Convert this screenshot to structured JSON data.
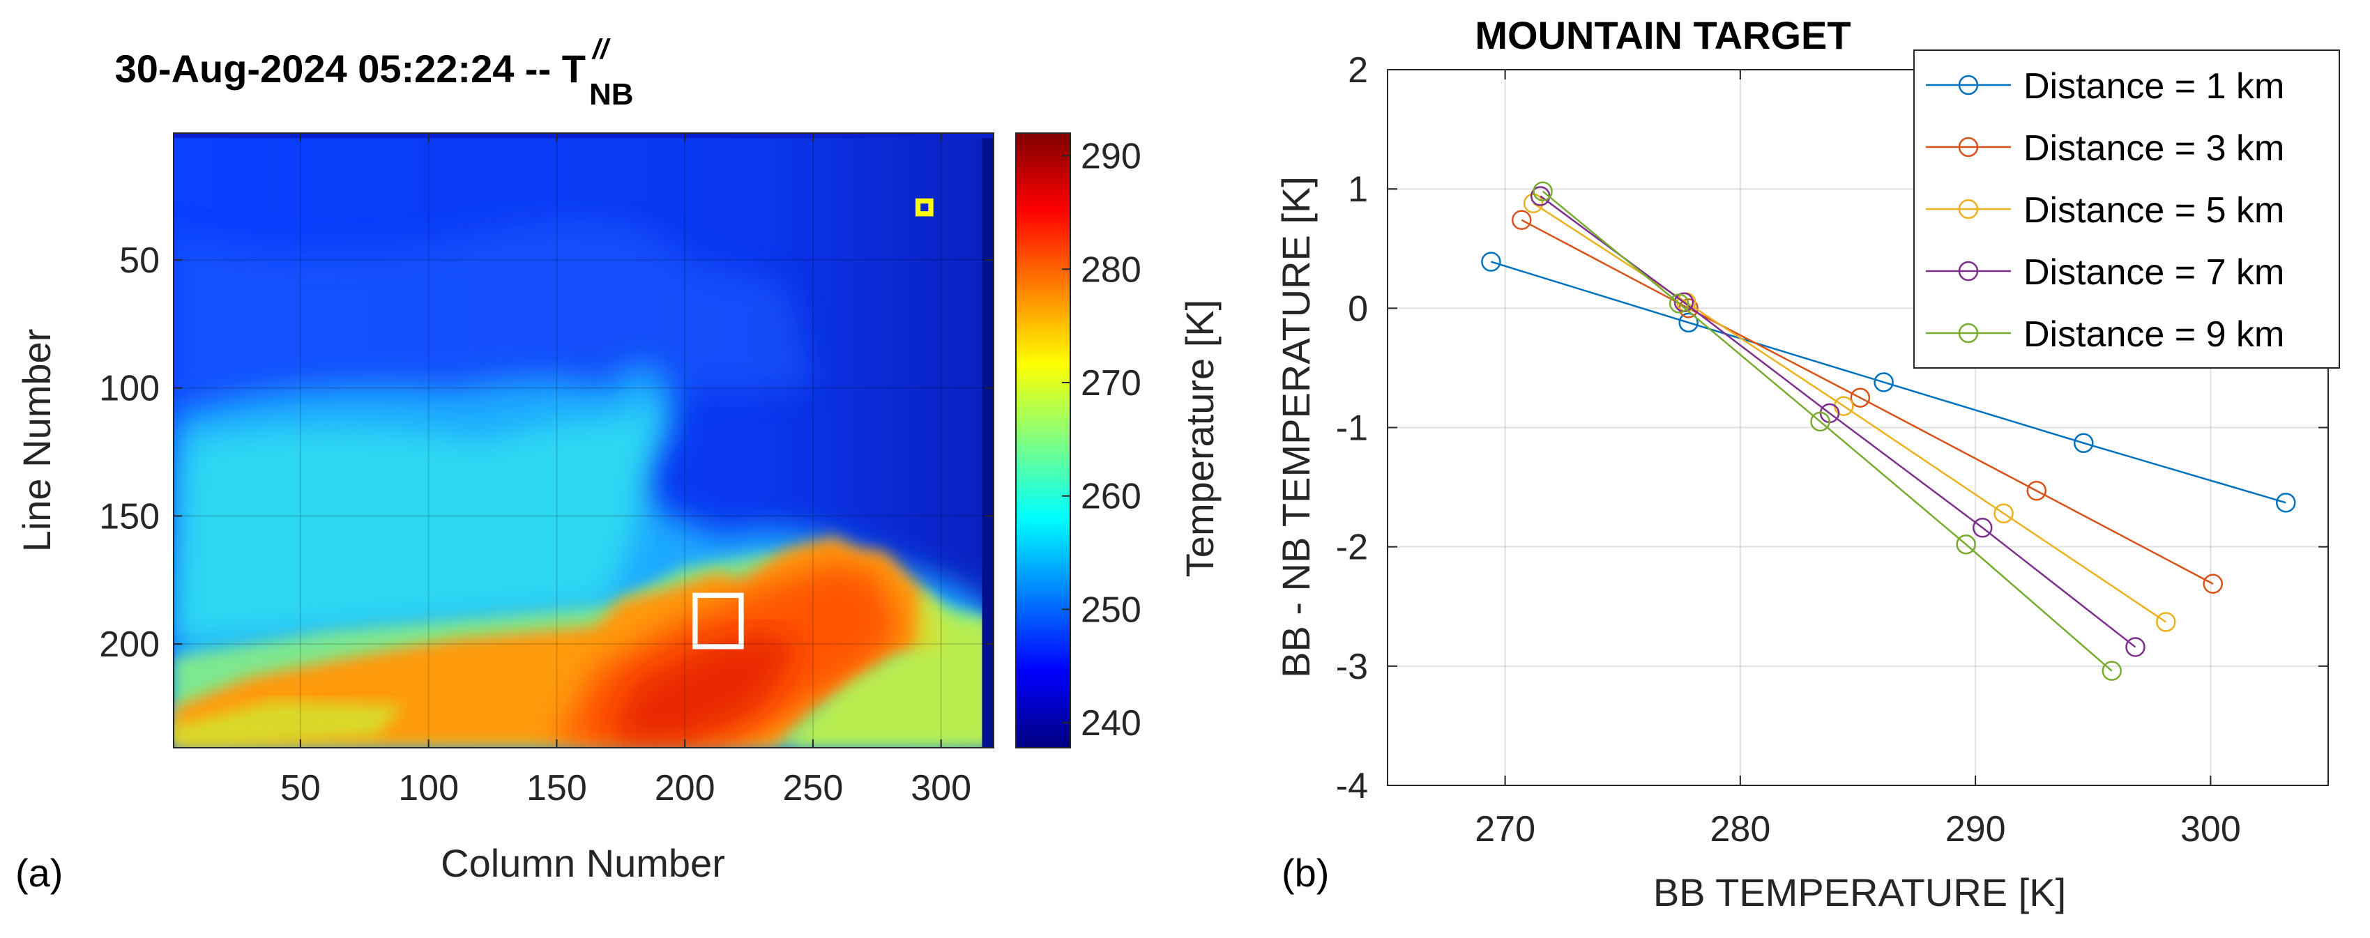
{
  "panel_labels": {
    "a": "(a)",
    "b": "(b)"
  },
  "chart_data": [
    {
      "type": "heatmap",
      "title": "30-Aug-2024 05:22:24 -- T",
      "title_superscript": "//",
      "title_subscript": "NB",
      "xlabel": "Column Number",
      "ylabel": "Line Number",
      "xlim": [
        0.5,
        320.5
      ],
      "ylim": [
        0.5,
        240.5
      ],
      "xticks": [
        50,
        100,
        150,
        200,
        250,
        300
      ],
      "yticks": [
        50,
        100,
        150,
        200
      ],
      "y_reversed": true,
      "colormap": "jet",
      "colorbar": {
        "label": "Temperature [K]",
        "range": [
          237.8,
          292
        ],
        "ticks": [
          240,
          250,
          260,
          270,
          280,
          290
        ]
      },
      "annotations": [
        {
          "shape": "square",
          "color": "#ffff00",
          "col": [
            290,
            296
          ],
          "line": [
            26,
            32
          ]
        },
        {
          "shape": "square",
          "color": "#ffffff",
          "col": [
            204,
            222
          ],
          "line": [
            181,
            201
          ]
        }
      ]
    },
    {
      "type": "line",
      "title": "MOUNTAIN TARGET",
      "xlabel": "BB TEMPERATURE [K]",
      "ylabel": "BB - NB TEMPERATURE [K]",
      "xlim": [
        265,
        305
      ],
      "ylim": [
        -4,
        2
      ],
      "xticks": [
        270,
        280,
        290,
        300
      ],
      "yticks": [
        -4,
        -3,
        -2,
        -1,
        0,
        1,
        2
      ],
      "grid": true,
      "legend_position": "top-right",
      "series": [
        {
          "name": "Distance = 1 km",
          "color": "#0072BD",
          "x": [
            269.4,
            277.8,
            286.1,
            294.6,
            303.2
          ],
          "y": [
            0.39,
            -0.12,
            -0.62,
            -1.13,
            -1.63
          ]
        },
        {
          "name": "Distance = 3 km",
          "color": "#D95319",
          "x": [
            270.7,
            277.8,
            285.1,
            292.6,
            300.1
          ],
          "y": [
            0.74,
            0.0,
            -0.75,
            -1.53,
            -2.31
          ]
        },
        {
          "name": "Distance = 5 km",
          "color": "#EDB120",
          "x": [
            271.2,
            277.7,
            284.4,
            291.2,
            298.1
          ],
          "y": [
            0.88,
            0.05,
            -0.82,
            -1.72,
            -2.63
          ]
        },
        {
          "name": "Distance = 7 km",
          "color": "#7E2F8E",
          "x": [
            271.5,
            277.6,
            283.8,
            290.3,
            296.8
          ],
          "y": [
            0.94,
            0.05,
            -0.88,
            -1.84,
            -2.84
          ]
        },
        {
          "name": "Distance = 9 km",
          "color": "#77AC30",
          "x": [
            271.6,
            277.4,
            283.4,
            289.6,
            295.8
          ],
          "y": [
            0.98,
            0.04,
            -0.95,
            -1.98,
            -3.04
          ]
        }
      ]
    }
  ]
}
